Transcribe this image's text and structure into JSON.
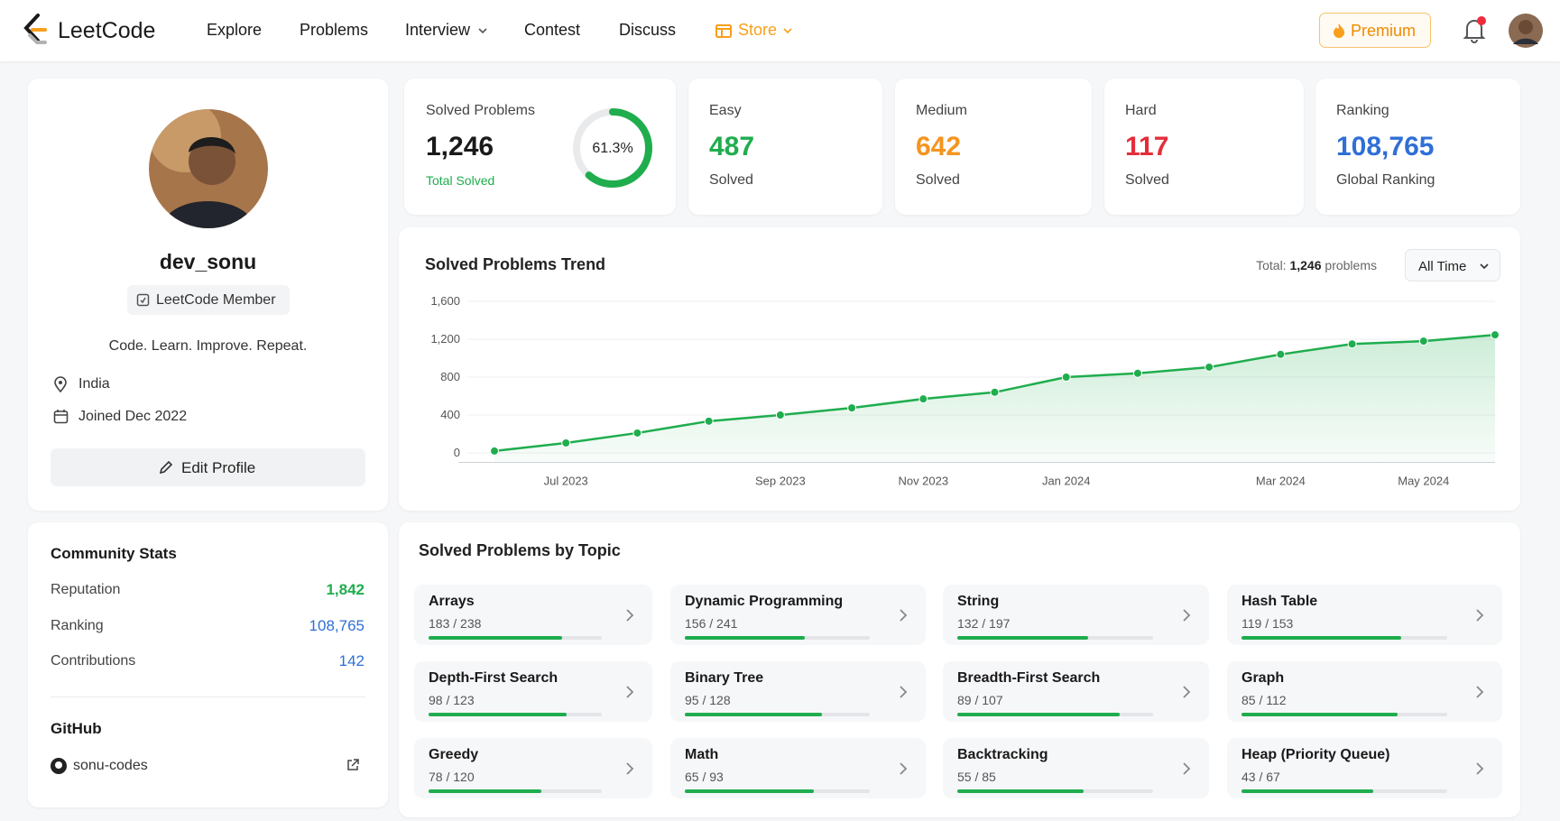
{
  "header": {
    "logo": "LeetCode",
    "nav": [
      "Explore",
      "Problems",
      "Interview",
      "Contest",
      "Discuss",
      "Store"
    ],
    "premium": "Premium"
  },
  "profile": {
    "username": "dev_sonu",
    "badge": "LeetCode Member",
    "bio": "Code. Learn. Improve. Repeat.",
    "location": "India",
    "joined": "Joined Dec 2022",
    "edit_button": "Edit Profile"
  },
  "community": {
    "title": "Community Stats",
    "rows": [
      {
        "label": "Reputation",
        "value": "1,842"
      },
      {
        "label": "Ranking",
        "value": "108,765"
      },
      {
        "label": "Contributions",
        "value": "142"
      }
    ],
    "github_title": "GitHub",
    "github_user": "sonu-codes"
  },
  "stats": {
    "solved": {
      "label": "Solved Problems",
      "value": "1,246",
      "sub": "Total Solved",
      "percent": 61.3,
      "percent_label": "61.3%"
    },
    "easy": {
      "label": "Easy",
      "value": "487",
      "sub": "Solved"
    },
    "medium": {
      "label": "Medium",
      "value": "642",
      "sub": "Solved"
    },
    "hard": {
      "label": "Hard",
      "value": "117",
      "sub": "Solved"
    },
    "ranking": {
      "label": "Ranking",
      "value": "108,765",
      "sub": "Global Ranking"
    }
  },
  "trend": {
    "type": "line",
    "title": "Solved Problems Trend",
    "total_prefix": "Total:",
    "total_value": "1,246",
    "total_suffix": "problems",
    "range": "All Time",
    "categories": [
      null,
      "Jul 2023",
      null,
      null,
      "Sep 2023",
      null,
      "Nov 2023",
      null,
      "Jan 2024",
      null,
      null,
      "Mar 2024",
      null,
      "May 2024",
      null
    ],
    "values": [
      20,
      105,
      210,
      335,
      400,
      475,
      570,
      640,
      800,
      840,
      905,
      1040,
      1150,
      1180,
      1246
    ],
    "color": "#1fad4e",
    "ylim": [
      -100,
      1600
    ],
    "yticks": [
      0,
      400,
      800,
      {
        "value": 1200,
        "label": "1,200"
      },
      {
        "value": 1600,
        "label": "1,600"
      }
    ],
    "grid": true
  },
  "topics": {
    "title": "Solved Problems by Topic",
    "items": [
      {
        "name": "Arrays",
        "count_label": "183 / 238",
        "solved": 183,
        "total": 238
      },
      {
        "name": "Dynamic Programming",
        "count_label": "156 / 241",
        "solved": 156,
        "total": 241
      },
      {
        "name": "String",
        "count_label": "132 / 197",
        "solved": 132,
        "total": 197
      },
      {
        "name": "Hash Table",
        "count_label": "119 / 153",
        "solved": 119,
        "total": 153
      },
      {
        "name": "Depth-First Search",
        "count_label": "98 / 123",
        "solved": 98,
        "total": 123
      },
      {
        "name": "Binary Tree",
        "count_label": "95 / 128",
        "solved": 95,
        "total": 128
      },
      {
        "name": "Breadth-First Search",
        "count_label": "89 / 107",
        "solved": 89,
        "total": 107
      },
      {
        "name": "Graph",
        "count_label": "85 / 112",
        "solved": 85,
        "total": 112
      },
      {
        "name": "Greedy",
        "count_label": "78 / 120",
        "solved": 78,
        "total": 120
      },
      {
        "name": "Math",
        "count_label": "65 / 93",
        "solved": 65,
        "total": 93
      },
      {
        "name": "Backtracking",
        "count_label": "55 / 85",
        "solved": 55,
        "total": 85
      },
      {
        "name": "Heap (Priority Queue)",
        "count_label": "43 / 67",
        "solved": 43,
        "total": 67
      }
    ]
  }
}
